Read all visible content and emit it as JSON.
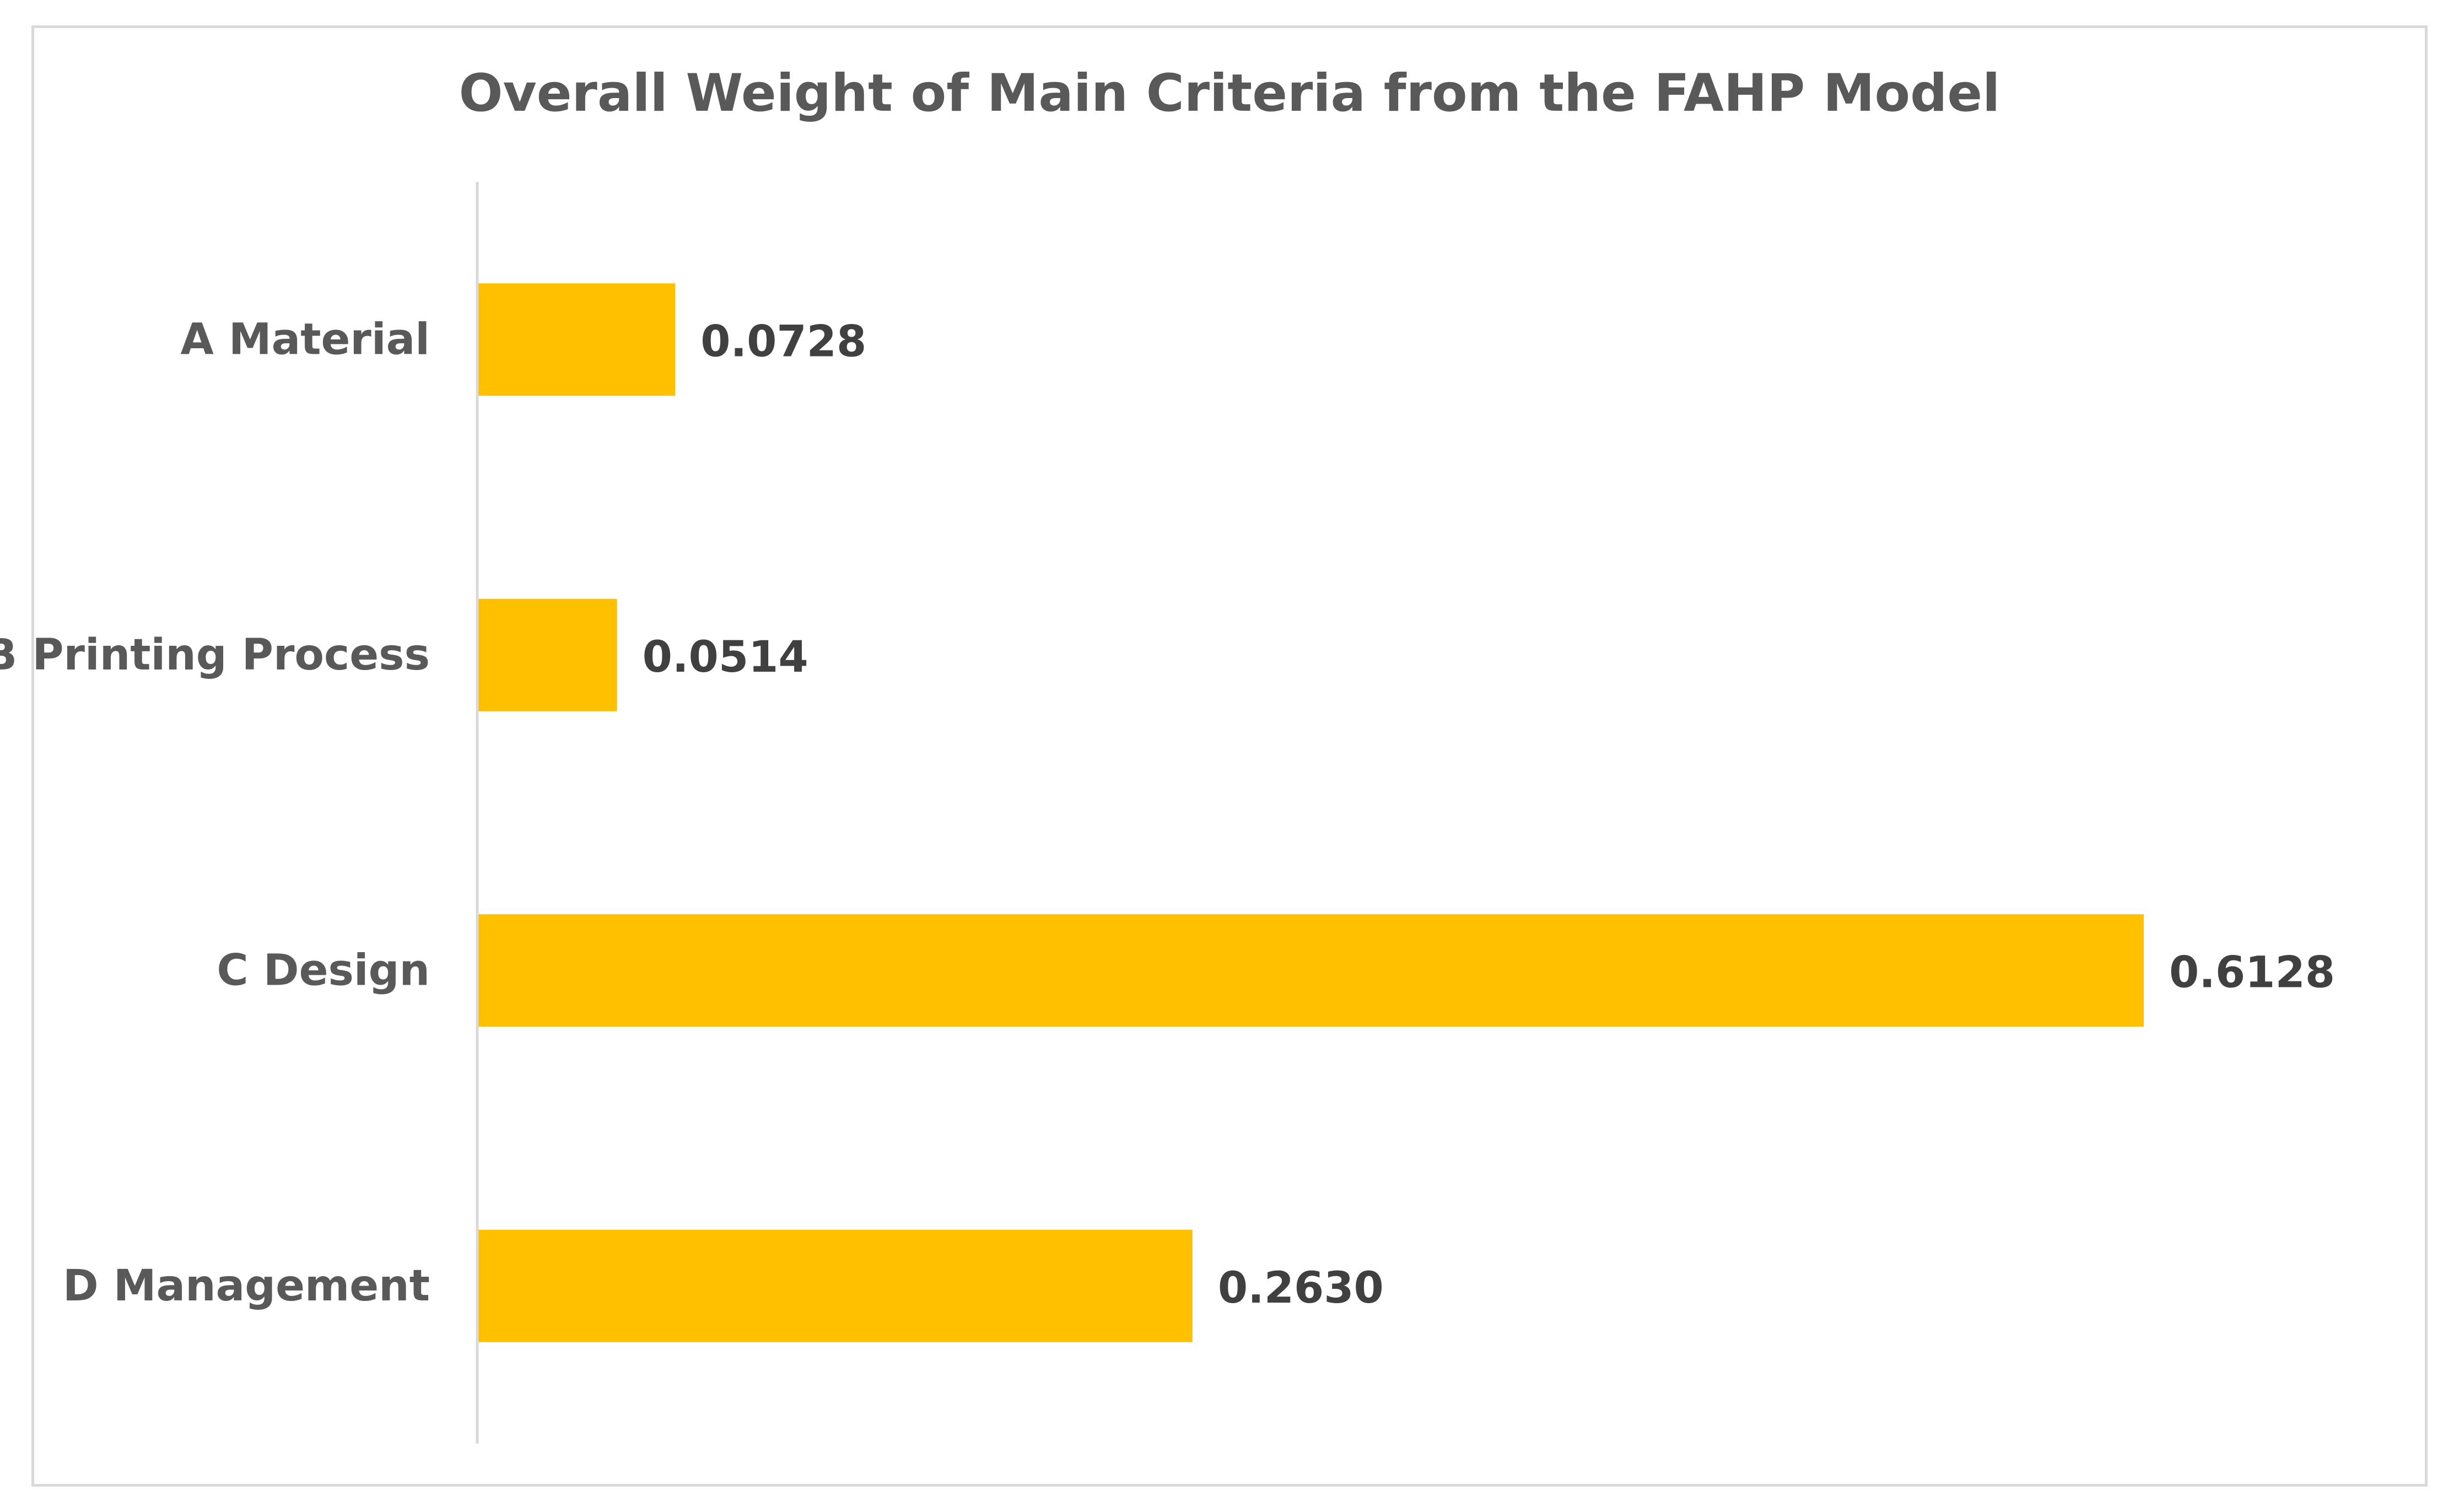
{
  "colors": {
    "bar": "#FFC000",
    "axis_line": "#d9d9d9",
    "title": "#595959",
    "category_label": "#595959",
    "data_label": "#404040"
  },
  "chart_data": {
    "type": "bar",
    "orientation": "horizontal",
    "title": "Overall Weight of Main Criteria from the FAHP Model",
    "xlabel": "",
    "ylabel": "",
    "categories": [
      "A Material",
      "B Printing Process",
      "C Design",
      "D Management"
    ],
    "values": [
      0.0728,
      0.0514,
      0.6128,
      0.263
    ],
    "data_labels": [
      "0.0728",
      "0.0514",
      "0.6128",
      "0.2630"
    ],
    "xlim": [
      0,
      0.75
    ],
    "grid": false,
    "legend": "none"
  }
}
